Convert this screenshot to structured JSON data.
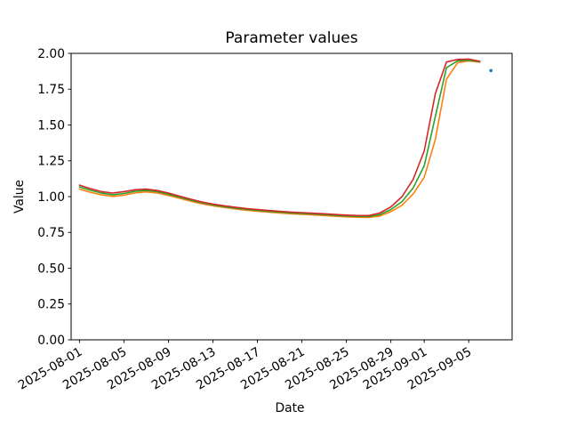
{
  "chart_data": {
    "type": "line",
    "title": "Parameter values",
    "xlabel": "Date",
    "ylabel": "Value",
    "grid": false,
    "legend": "none",
    "x_start_date": "2025-08-01",
    "x_cadence_days": 1,
    "x_range_days": [
      -0.75,
      38.9
    ],
    "ylim": [
      0,
      2.0
    ],
    "y_ticks": [
      0.0,
      0.25,
      0.5,
      0.75,
      1.0,
      1.25,
      1.5,
      1.75,
      2.0
    ],
    "x_ticks": [
      {
        "label": "2025-08-01",
        "day": 0
      },
      {
        "label": "2025-08-05",
        "day": 4
      },
      {
        "label": "2025-08-09",
        "day": 8
      },
      {
        "label": "2025-08-13",
        "day": 12
      },
      {
        "label": "2025-08-17",
        "day": 16
      },
      {
        "label": "2025-08-21",
        "day": 20
      },
      {
        "label": "2025-08-25",
        "day": 24
      },
      {
        "label": "2025-08-29",
        "day": 28
      },
      {
        "label": "2025-09-01",
        "day": 31
      },
      {
        "label": "2025-09-05",
        "day": 35
      }
    ],
    "series": [
      {
        "name": "orange",
        "color": "#ff7f0e",
        "values": [
          1.053,
          1.03,
          1.012,
          1.001,
          1.01,
          1.026,
          1.033,
          1.025,
          1.008,
          0.988,
          0.968,
          0.95,
          0.936,
          0.924,
          0.914,
          0.905,
          0.898,
          0.891,
          0.885,
          0.88,
          0.876,
          0.872,
          0.868,
          0.863,
          0.859,
          0.856,
          0.854,
          0.864,
          0.895,
          0.94,
          1.018,
          1.135,
          1.4,
          1.82,
          1.935,
          1.948,
          1.938
        ]
      },
      {
        "name": "green",
        "color": "#2ca02c",
        "values": [
          1.068,
          1.044,
          1.024,
          1.013,
          1.022,
          1.037,
          1.043,
          1.034,
          1.017,
          0.996,
          0.975,
          0.957,
          0.942,
          0.93,
          0.92,
          0.911,
          0.904,
          0.897,
          0.891,
          0.886,
          0.882,
          0.878,
          0.874,
          0.869,
          0.865,
          0.862,
          0.861,
          0.874,
          0.91,
          0.965,
          1.06,
          1.215,
          1.56,
          1.9,
          1.948,
          1.952,
          1.942
        ]
      },
      {
        "name": "red",
        "color": "#d62728",
        "values": [
          1.08,
          1.055,
          1.035,
          1.025,
          1.035,
          1.048,
          1.052,
          1.042,
          1.025,
          1.003,
          0.982,
          0.963,
          0.948,
          0.936,
          0.926,
          0.917,
          0.91,
          0.903,
          0.897,
          0.892,
          0.888,
          0.884,
          0.88,
          0.875,
          0.871,
          0.868,
          0.868,
          0.885,
          0.928,
          1.0,
          1.12,
          1.32,
          1.72,
          1.94,
          1.958,
          1.96,
          1.945
        ]
      }
    ],
    "scatter": {
      "name": "blue",
      "color": "#1f77b4",
      "date": "2025-09-07",
      "day": 37,
      "value": 1.88
    }
  }
}
